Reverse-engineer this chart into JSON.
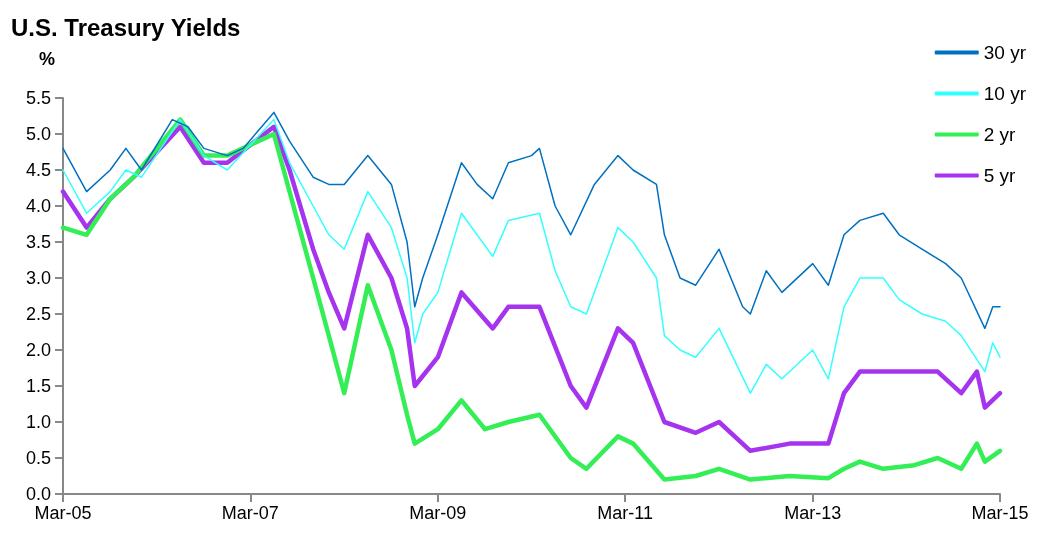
{
  "chart_data": {
    "type": "line",
    "title": "U.S. Treasury Yields",
    "ylabel": "%",
    "xlim": [
      "2005-03",
      "2015-03"
    ],
    "xticks": [
      {
        "value": "2005-03",
        "label": "Mar-05"
      },
      {
        "value": "2007-03",
        "label": "Mar-07"
      },
      {
        "value": "2009-03",
        "label": "Mar-09"
      },
      {
        "value": "2011-03",
        "label": "Mar-11"
      },
      {
        "value": "2013-03",
        "label": "Mar-13"
      },
      {
        "value": "2015-03",
        "label": "Mar-15"
      }
    ],
    "ylim": [
      0,
      5.5
    ],
    "yticks": [
      {
        "value": 0,
        "label": "0.0"
      },
      {
        "value": 0.5,
        "label": "0.5"
      },
      {
        "value": 1,
        "label": "1.0"
      },
      {
        "value": 1.5,
        "label": "1.5"
      },
      {
        "value": 2,
        "label": "2.0"
      },
      {
        "value": 2.5,
        "label": "2.5"
      },
      {
        "value": 3,
        "label": "3.0"
      },
      {
        "value": 3.5,
        "label": "3.5"
      },
      {
        "value": 4,
        "label": "4.0"
      },
      {
        "value": 4.5,
        "label": "4.5"
      },
      {
        "value": 5,
        "label": "5.0"
      },
      {
        "value": 5.5,
        "label": "5.5"
      }
    ],
    "grid": false,
    "legend": "top right",
    "marker": "none",
    "series": [
      {
        "name": "30 yr",
        "color": "#0070c0",
        "x": [
          "2005-03",
          "2005-06",
          "2005-09",
          "2005-11",
          "2006-01",
          "2006-05",
          "2006-07",
          "2006-09",
          "2006-12",
          "2007-02",
          "2007-06",
          "2007-08",
          "2007-11",
          "2008-01",
          "2008-03",
          "2008-06",
          "2008-09",
          "2008-11",
          "2008-12",
          "2009-01",
          "2009-03",
          "2009-06",
          "2009-08",
          "2009-10",
          "2009-12",
          "2010-03",
          "2010-04",
          "2010-06",
          "2010-08",
          "2010-11",
          "2011-02",
          "2011-04",
          "2011-07",
          "2011-08",
          "2011-10",
          "2011-12",
          "2012-03",
          "2012-06",
          "2012-07",
          "2012-09",
          "2012-11",
          "2013-03",
          "2013-05",
          "2013-07",
          "2013-09",
          "2013-12",
          "2014-02",
          "2014-05",
          "2014-08",
          "2014-10",
          "2015-01",
          "2015-02",
          "2015-03"
        ],
        "values": [
          4.8,
          4.2,
          4.5,
          4.8,
          4.5,
          5.2,
          5.1,
          4.8,
          4.7,
          4.8,
          5.3,
          4.9,
          4.4,
          4.3,
          4.3,
          4.7,
          4.3,
          3.5,
          2.6,
          3.0,
          3.6,
          4.6,
          4.3,
          4.1,
          4.6,
          4.7,
          4.8,
          4.0,
          3.6,
          4.3,
          4.7,
          4.5,
          4.3,
          3.6,
          3.0,
          2.9,
          3.4,
          2.6,
          2.5,
          3.1,
          2.8,
          3.2,
          2.9,
          3.6,
          3.8,
          3.9,
          3.6,
          3.4,
          3.2,
          3.0,
          2.3,
          2.6,
          2.6
        ]
      },
      {
        "name": "10 yr",
        "color": "#33ffff",
        "x": [
          "2005-03",
          "2005-06",
          "2005-09",
          "2005-11",
          "2006-01",
          "2006-06",
          "2006-09",
          "2006-12",
          "2007-06",
          "2007-08",
          "2007-11",
          "2008-01",
          "2008-03",
          "2008-06",
          "2008-09",
          "2008-11",
          "2008-12",
          "2009-01",
          "2009-03",
          "2009-06",
          "2009-10",
          "2009-12",
          "2010-04",
          "2010-06",
          "2010-08",
          "2010-10",
          "2011-02",
          "2011-04",
          "2011-07",
          "2011-08",
          "2011-10",
          "2011-12",
          "2012-03",
          "2012-07",
          "2012-09",
          "2012-11",
          "2013-03",
          "2013-05",
          "2013-07",
          "2013-09",
          "2013-12",
          "2014-02",
          "2014-05",
          "2014-08",
          "2014-10",
          "2015-01",
          "2015-02",
          "2015-03"
        ],
        "values": [
          4.5,
          3.9,
          4.2,
          4.5,
          4.4,
          5.2,
          4.7,
          4.5,
          5.2,
          4.6,
          4.0,
          3.6,
          3.4,
          4.2,
          3.7,
          3.0,
          2.1,
          2.5,
          2.8,
          3.9,
          3.3,
          3.8,
          3.9,
          3.1,
          2.6,
          2.5,
          3.7,
          3.5,
          3.0,
          2.2,
          2.0,
          1.9,
          2.3,
          1.4,
          1.8,
          1.6,
          2.0,
          1.6,
          2.6,
          3.0,
          3.0,
          2.7,
          2.5,
          2.4,
          2.2,
          1.7,
          2.1,
          1.9
        ]
      },
      {
        "name": "2 yr",
        "color": "#33ee55",
        "x": [
          "2005-03",
          "2005-06",
          "2005-09",
          "2005-12",
          "2006-06",
          "2006-09",
          "2006-12",
          "2007-06",
          "2007-08",
          "2007-11",
          "2008-01",
          "2008-03",
          "2008-06",
          "2008-09",
          "2008-11",
          "2008-12",
          "2009-03",
          "2009-06",
          "2009-09",
          "2009-12",
          "2010-04",
          "2010-08",
          "2010-10",
          "2011-02",
          "2011-04",
          "2011-08",
          "2011-12",
          "2012-03",
          "2012-07",
          "2012-12",
          "2013-05",
          "2013-07",
          "2013-09",
          "2013-12",
          "2014-04",
          "2014-07",
          "2014-10",
          "2014-12",
          "2015-01",
          "2015-03"
        ],
        "values": [
          3.7,
          3.6,
          4.1,
          4.4,
          5.2,
          4.7,
          4.7,
          5.0,
          4.2,
          3.0,
          2.2,
          1.4,
          2.9,
          2.0,
          1.1,
          0.7,
          0.9,
          1.3,
          0.9,
          1.0,
          1.1,
          0.5,
          0.35,
          0.8,
          0.7,
          0.2,
          0.25,
          0.35,
          0.2,
          0.25,
          0.22,
          0.35,
          0.45,
          0.35,
          0.4,
          0.5,
          0.35,
          0.7,
          0.45,
          0.6
        ]
      },
      {
        "name": "5 yr",
        "color": "#a633ee",
        "x": [
          "2005-03",
          "2005-06",
          "2005-09",
          "2005-12",
          "2006-06",
          "2006-09",
          "2006-12",
          "2007-06",
          "2007-08",
          "2007-11",
          "2008-01",
          "2008-03",
          "2008-06",
          "2008-09",
          "2008-11",
          "2008-12",
          "2009-03",
          "2009-06",
          "2009-10",
          "2009-12",
          "2010-04",
          "2010-08",
          "2010-10",
          "2011-02",
          "2011-04",
          "2011-08",
          "2011-12",
          "2012-03",
          "2012-07",
          "2012-12",
          "2013-05",
          "2013-07",
          "2013-09",
          "2013-12",
          "2014-04",
          "2014-07",
          "2014-10",
          "2014-12",
          "2015-01",
          "2015-03"
        ],
        "values": [
          4.2,
          3.7,
          4.1,
          4.4,
          5.1,
          4.6,
          4.6,
          5.1,
          4.5,
          3.4,
          2.8,
          2.3,
          3.6,
          3.0,
          2.3,
          1.5,
          1.9,
          2.8,
          2.3,
          2.6,
          2.6,
          1.5,
          1.2,
          2.3,
          2.1,
          1.0,
          0.85,
          1.0,
          0.6,
          0.7,
          0.7,
          1.4,
          1.7,
          1.7,
          1.7,
          1.7,
          1.4,
          1.7,
          1.2,
          1.4
        ]
      }
    ]
  }
}
